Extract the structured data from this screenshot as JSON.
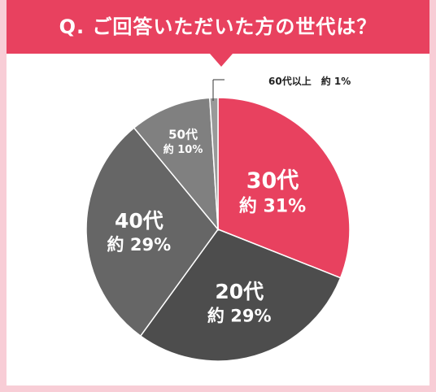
{
  "title": "Q. ご回答いただいた方の世代は？",
  "colors": {
    "banner": "#e8415f",
    "background": "#f8cdd6"
  },
  "chart_data": {
    "type": "pie",
    "title": "Q. ご回答いただいた方の世代は？",
    "categories": [
      "30代",
      "20代",
      "40代",
      "50代",
      "60代以上"
    ],
    "values": [
      31,
      29,
      29,
      10,
      1
    ],
    "value_labels": [
      "約 31%",
      "約 29%",
      "約 29%",
      "約 10%",
      "約 1%"
    ],
    "colors": [
      "#e8415f",
      "#4d4d4d",
      "#666666",
      "#808080",
      "#999999"
    ]
  },
  "outside_label": "60代以上　約 1%"
}
